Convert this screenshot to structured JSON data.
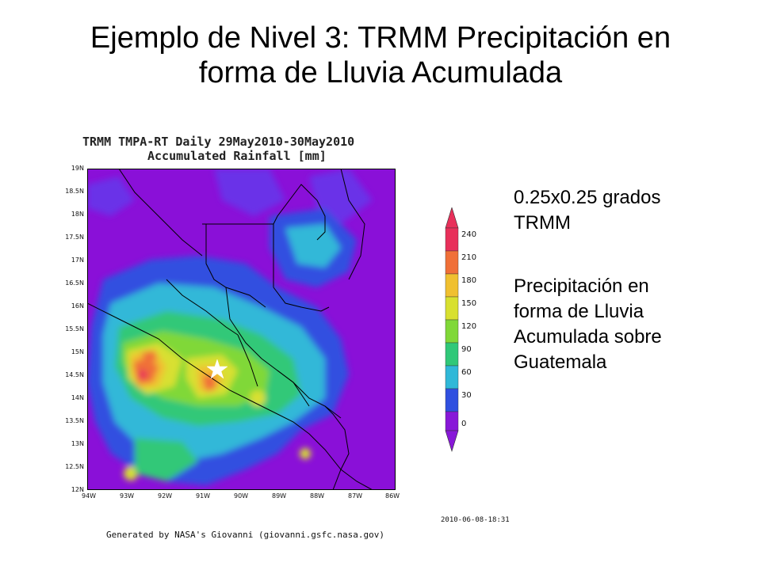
{
  "slide": {
    "title_line1": "Ejemplo de Nivel 3: TRMM Precipitación en",
    "title_line2": "forma de Lluvia Acumulada"
  },
  "map": {
    "caption_line1": "TRMM TMPA-RT Daily 29May2010-30May2010",
    "caption_line2": "Accumulated Rainfall [mm]",
    "lat_ticks": [
      "19N",
      "18.5N",
      "18N",
      "17.5N",
      "17N",
      "16.5N",
      "16N",
      "15.5N",
      "15N",
      "14.5N",
      "14N",
      "13.5N",
      "13N",
      "12.5N",
      "12N"
    ],
    "lon_ticks": [
      "94W",
      "93W",
      "92W",
      "91W",
      "90W",
      "89W",
      "88W",
      "87W",
      "86W"
    ],
    "timestamp": "2010-06-08-18:31",
    "generated_by": "Generated by NASA's Giovanni (giovanni.gsfc.nasa.gov)",
    "marker_icon": "star-icon"
  },
  "colorbar": {
    "labels": [
      "240",
      "210",
      "180",
      "150",
      "120",
      "90",
      "60",
      "30",
      "0"
    ],
    "colors": [
      "#e8305a",
      "#f07038",
      "#f0c030",
      "#d8e030",
      "#80d838",
      "#30c878",
      "#30b8d8",
      "#3050e0",
      "#8818d8"
    ]
  },
  "side": {
    "resolution_line1": "0.25x0.25 grados",
    "resolution_line2": "TRMM",
    "desc_line1": "Precipitación en",
    "desc_line2": "forma de Lluvia",
    "desc_line3": "Acumulada sobre",
    "desc_line4": "Guatemala"
  },
  "colors": {
    "background": "#8a10d8",
    "text": "#000000"
  }
}
